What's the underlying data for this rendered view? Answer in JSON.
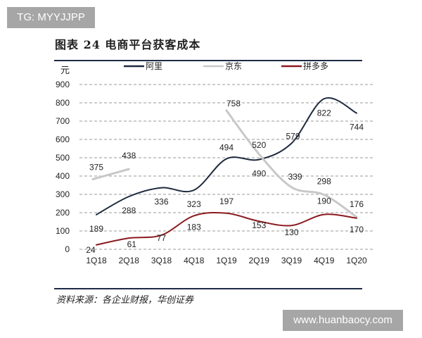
{
  "watermarks": {
    "top": "TG: MYYJJPP",
    "bottom": "www.huanbaocy.com"
  },
  "title": "图表 24   电商平台获客成本",
  "source": "资料来源：各企业财报，华创证券",
  "chart_data": {
    "type": "line",
    "title": "",
    "ylabel": "元",
    "xlabel": "",
    "ylim": [
      0,
      900
    ],
    "yticks": [
      0,
      100,
      200,
      300,
      400,
      500,
      600,
      700,
      800,
      900
    ],
    "grid": "horizontal-dashed",
    "legend_position": "top",
    "categories": [
      "1Q18",
      "2Q18",
      "3Q18",
      "4Q18",
      "1Q19",
      "2Q19",
      "3Q19",
      "4Q19",
      "1Q20"
    ],
    "series": [
      {
        "name": "阿里",
        "color": "#1e2a3e",
        "values": [
          189,
          288,
          336,
          323,
          494,
          490,
          579,
          822,
          744
        ]
      },
      {
        "name": "京东",
        "color": "#c8c8c8",
        "values": [
          375,
          438,
          null,
          null,
          758,
          520,
          339,
          298,
          176
        ]
      },
      {
        "name": "拼多多",
        "color": "#8b1a1f",
        "values": [
          24,
          61,
          77,
          183,
          197,
          153,
          130,
          190,
          170
        ]
      }
    ]
  }
}
